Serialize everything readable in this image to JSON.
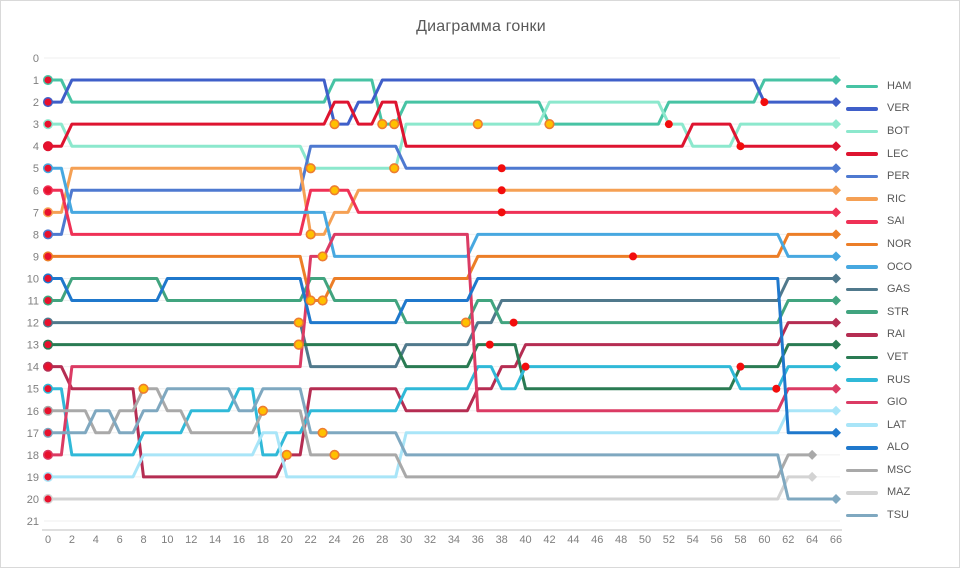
{
  "title": "Диаграмма гонки",
  "chart_data": {
    "type": "line",
    "subtype": "race-position-bump-chart",
    "title": "Диаграмма гонки",
    "xlabel": "",
    "ylabel": "",
    "x_axis": {
      "min": 0,
      "max": 66,
      "tick_step": 2,
      "ticks": [
        0,
        2,
        4,
        6,
        8,
        10,
        12,
        14,
        16,
        18,
        20,
        22,
        24,
        26,
        28,
        30,
        32,
        34,
        36,
        38,
        40,
        42,
        44,
        46,
        48,
        50,
        52,
        54,
        56,
        58,
        60,
        62,
        64,
        66
      ]
    },
    "y_axis": {
      "min": 0,
      "max": 21,
      "tick_step": 1,
      "ticks": [
        0,
        1,
        2,
        3,
        4,
        5,
        6,
        7,
        8,
        9,
        10,
        11,
        12,
        13,
        14,
        15,
        16,
        17,
        18,
        19,
        20,
        21
      ]
    },
    "grid": "horizontal-light",
    "legend_position": "right",
    "axis_text_color": "#7f7f7f",
    "title_color": "#595959",
    "gridline_color": "#efefef",
    "axis_line_color": "#bfbfbf",
    "marker_colors": {
      "start_dot": "#e8112d",
      "pit_dot_fill": "#ffc000",
      "pit_dot_stroke": "#ed7d31",
      "battle_dot": "#f20d0d"
    },
    "x": [
      0,
      2,
      4,
      6,
      8,
      10,
      12,
      14,
      16,
      18,
      20,
      22,
      24,
      26,
      28,
      30,
      32,
      34,
      36,
      38,
      40,
      42,
      44,
      46,
      48,
      50,
      52,
      54,
      56,
      58,
      60,
      62,
      64,
      66
    ],
    "series": [
      {
        "name": "HAM",
        "color": "#47c3a4",
        "positions": [
          1,
          2,
          2,
          2,
          2,
          2,
          2,
          2,
          2,
          2,
          2,
          2,
          1,
          1,
          3,
          2,
          2,
          2,
          2,
          2,
          2,
          3,
          3,
          3,
          3,
          3,
          2,
          2,
          2,
          2,
          1,
          1,
          1,
          1
        ],
        "pit_stops": [
          {
            "lap": 28,
            "pos": 3
          },
          {
            "lap": 42,
            "pos": 3
          }
        ],
        "battles": []
      },
      {
        "name": "VER",
        "color": "#3f5fc9",
        "positions": [
          2,
          1,
          1,
          1,
          1,
          1,
          1,
          1,
          1,
          1,
          1,
          1,
          3,
          2,
          1,
          1,
          1,
          1,
          1,
          1,
          1,
          1,
          1,
          1,
          1,
          1,
          1,
          1,
          1,
          1,
          2,
          2,
          2,
          2
        ],
        "pit_stops": [
          {
            "lap": 24,
            "pos": 3
          }
        ],
        "battles": [
          {
            "lap": 60,
            "pos": 2
          }
        ]
      },
      {
        "name": "BOT",
        "color": "#8ce8cd",
        "positions": [
          3,
          4,
          4,
          4,
          4,
          4,
          4,
          4,
          4,
          4,
          4,
          5,
          5,
          5,
          5,
          3,
          3,
          3,
          3,
          3,
          3,
          2,
          2,
          2,
          2,
          2,
          3,
          4,
          4,
          3,
          3,
          3,
          3,
          3
        ],
        "pit_stops": [
          {
            "lap": 22,
            "pos": 5
          },
          {
            "lap": 36,
            "pos": 3
          }
        ],
        "battles": []
      },
      {
        "name": "LEC",
        "color": "#de1430",
        "positions": [
          4,
          3,
          3,
          3,
          3,
          3,
          3,
          3,
          3,
          3,
          3,
          3,
          2,
          3,
          2,
          4,
          4,
          4,
          4,
          4,
          4,
          4,
          4,
          4,
          4,
          4,
          4,
          3,
          3,
          4,
          4,
          4,
          4,
          4
        ],
        "pit_stops": [
          {
            "lap": 29,
            "pos": 3
          }
        ],
        "battles": [
          {
            "lap": 52,
            "pos": 3
          },
          {
            "lap": 58,
            "pos": 4
          }
        ]
      },
      {
        "name": "PER",
        "color": "#4e79d0",
        "positions": [
          8,
          6,
          6,
          6,
          6,
          6,
          6,
          6,
          6,
          6,
          6,
          4,
          4,
          4,
          4,
          5,
          5,
          5,
          5,
          5,
          5,
          5,
          5,
          5,
          5,
          5,
          5,
          5,
          5,
          5,
          5,
          5,
          5,
          5
        ],
        "pit_stops": [
          {
            "lap": 29,
            "pos": 5
          }
        ],
        "battles": [
          {
            "lap": 38,
            "pos": 5
          }
        ]
      },
      {
        "name": "RIC",
        "color": "#f5a054",
        "positions": [
          7,
          5,
          5,
          5,
          5,
          5,
          5,
          5,
          5,
          5,
          5,
          8,
          7,
          6,
          6,
          6,
          6,
          6,
          6,
          6,
          6,
          6,
          6,
          6,
          6,
          6,
          6,
          6,
          6,
          6,
          6,
          6,
          6,
          6
        ],
        "pit_stops": [
          {
            "lap": 22,
            "pos": 8
          }
        ],
        "battles": [
          {
            "lap": 38,
            "pos": 6
          }
        ]
      },
      {
        "name": "SAI",
        "color": "#ef3156",
        "positions": [
          6,
          8,
          8,
          8,
          8,
          8,
          8,
          8,
          8,
          8,
          8,
          6,
          6,
          7,
          7,
          7,
          7,
          7,
          7,
          7,
          7,
          7,
          7,
          7,
          7,
          7,
          7,
          7,
          7,
          7,
          7,
          7,
          7,
          7
        ],
        "pit_stops": [
          {
            "lap": 24,
            "pos": 6
          }
        ],
        "battles": [
          {
            "lap": 38,
            "pos": 7
          }
        ]
      },
      {
        "name": "NOR",
        "color": "#ec7e27",
        "positions": [
          9,
          9,
          9,
          9,
          9,
          9,
          9,
          9,
          9,
          9,
          9,
          11,
          10,
          10,
          10,
          10,
          10,
          10,
          9,
          9,
          9,
          9,
          9,
          9,
          9,
          9,
          9,
          9,
          9,
          9,
          9,
          8,
          8,
          8
        ],
        "pit_stops": [
          {
            "lap": 22,
            "pos": 11
          }
        ],
        "battles": [
          {
            "lap": 49,
            "pos": 9
          }
        ]
      },
      {
        "name": "OCO",
        "color": "#47a8e0",
        "positions": [
          5,
          7,
          7,
          7,
          7,
          7,
          7,
          7,
          7,
          7,
          7,
          7,
          9,
          9,
          9,
          9,
          9,
          9,
          8,
          8,
          8,
          8,
          8,
          8,
          8,
          8,
          8,
          8,
          8,
          8,
          8,
          9,
          9,
          9
        ],
        "pit_stops": [
          {
            "lap": 23,
            "pos": 9
          }
        ],
        "battles": []
      },
      {
        "name": "GAS",
        "color": "#50798c",
        "positions": [
          12,
          12,
          12,
          12,
          12,
          12,
          12,
          12,
          12,
          12,
          12,
          14,
          14,
          14,
          14,
          13,
          13,
          13,
          12,
          11,
          11,
          11,
          11,
          11,
          11,
          11,
          11,
          11,
          11,
          11,
          11,
          10,
          10,
          10
        ],
        "pit_stops": [
          {
            "lap": 21,
            "pos": 13
          }
        ],
        "battles": []
      },
      {
        "name": "STR",
        "color": "#41a47f",
        "positions": [
          11,
          10,
          10,
          10,
          10,
          11,
          11,
          11,
          11,
          11,
          11,
          10,
          11,
          11,
          11,
          12,
          12,
          12,
          11,
          12,
          12,
          12,
          12,
          12,
          12,
          12,
          12,
          12,
          12,
          12,
          12,
          11,
          11,
          11
        ],
        "pit_stops": [
          {
            "lap": 23,
            "pos": 11
          }
        ],
        "battles": [
          {
            "lap": 39,
            "pos": 12
          }
        ]
      },
      {
        "name": "RAI",
        "color": "#b52d52",
        "positions": [
          14,
          15,
          15,
          15,
          19,
          19,
          19,
          19,
          19,
          19,
          18,
          15,
          15,
          15,
          15,
          16,
          16,
          16,
          15,
          14,
          13,
          13,
          13,
          13,
          13,
          13,
          13,
          13,
          13,
          13,
          13,
          12,
          12,
          12
        ],
        "pit_stops": [
          {
            "lap": 8,
            "pos": 15
          }
        ],
        "battles": [
          {
            "lap": 37,
            "pos": 13
          }
        ]
      },
      {
        "name": "VET",
        "color": "#2a7b53",
        "positions": [
          13,
          13,
          13,
          13,
          13,
          13,
          13,
          13,
          13,
          13,
          13,
          13,
          13,
          13,
          13,
          14,
          14,
          14,
          13,
          13,
          15,
          15,
          15,
          15,
          15,
          15,
          15,
          15,
          15,
          14,
          14,
          13,
          13,
          13
        ],
        "pit_stops": [
          {
            "lap": 21,
            "pos": 13
          }
        ],
        "battles": [
          {
            "lap": 58,
            "pos": 14
          }
        ]
      },
      {
        "name": "RUS",
        "color": "#30b9d8",
        "positions": [
          15,
          18,
          18,
          18,
          17,
          17,
          16,
          16,
          15,
          18,
          17,
          16,
          16,
          16,
          16,
          15,
          15,
          15,
          14,
          15,
          14,
          14,
          14,
          14,
          14,
          14,
          14,
          14,
          14,
          15,
          15,
          14,
          14,
          14
        ],
        "pit_stops": [
          {
            "lap": 18,
            "pos": 16
          }
        ],
        "battles": [
          {
            "lap": 40,
            "pos": 14
          }
        ]
      },
      {
        "name": "GIO",
        "color": "#db3b64",
        "positions": [
          18,
          14,
          14,
          14,
          14,
          14,
          14,
          14,
          14,
          14,
          14,
          9,
          8,
          8,
          8,
          8,
          8,
          8,
          16,
          16,
          16,
          16,
          16,
          16,
          16,
          16,
          16,
          16,
          16,
          16,
          16,
          15,
          15,
          15
        ],
        "pit_stops": [
          {
            "lap": 35,
            "pos": 12
          }
        ],
        "battles": [
          {
            "lap": 61,
            "pos": 15
          }
        ]
      },
      {
        "name": "LAT",
        "color": "#a9e5f8",
        "positions": [
          19,
          19,
          19,
          19,
          18,
          18,
          18,
          18,
          18,
          17,
          19,
          19,
          19,
          19,
          19,
          17,
          17,
          17,
          17,
          17,
          17,
          17,
          17,
          17,
          17,
          17,
          17,
          17,
          17,
          17,
          17,
          16,
          16,
          16
        ],
        "pit_stops": [
          {
            "lap": 20,
            "pos": 18
          }
        ],
        "battles": []
      },
      {
        "name": "ALO",
        "color": "#1f78cc",
        "positions": [
          10,
          11,
          11,
          11,
          11,
          10,
          10,
          10,
          10,
          10,
          10,
          12,
          12,
          12,
          12,
          11,
          11,
          11,
          10,
          10,
          10,
          10,
          10,
          10,
          10,
          10,
          10,
          10,
          10,
          10,
          10,
          17,
          17,
          17
        ],
        "pit_stops": [
          {
            "lap": 21,
            "pos": 12
          }
        ],
        "battles": []
      },
      {
        "name": "MSC",
        "color": "#a9a9a9",
        "positions": [
          16,
          16,
          17,
          16,
          15,
          16,
          17,
          17,
          17,
          16,
          16,
          18,
          18,
          18,
          18,
          19,
          19,
          19,
          19,
          19,
          19,
          19,
          19,
          19,
          19,
          19,
          19,
          19,
          19,
          19,
          19,
          18,
          18,
          null
        ],
        "pit_stops": [
          {
            "lap": 24,
            "pos": 18
          }
        ],
        "battles": []
      },
      {
        "name": "MAZ",
        "color": "#d3d3d3",
        "positions": [
          20,
          20,
          20,
          20,
          20,
          20,
          20,
          20,
          20,
          20,
          20,
          20,
          20,
          20,
          20,
          20,
          20,
          20,
          20,
          20,
          20,
          20,
          20,
          20,
          20,
          20,
          20,
          20,
          20,
          20,
          20,
          19,
          19,
          null
        ],
        "pit_stops": [],
        "battles": []
      },
      {
        "name": "TSU",
        "color": "#7fa8c0",
        "positions": [
          17,
          17,
          16,
          17,
          16,
          15,
          15,
          15,
          16,
          15,
          15,
          17,
          17,
          17,
          17,
          18,
          18,
          18,
          18,
          18,
          18,
          18,
          18,
          18,
          18,
          18,
          18,
          18,
          18,
          18,
          18,
          20,
          20,
          20
        ],
        "pit_stops": [
          {
            "lap": 23,
            "pos": 17
          }
        ],
        "battles": []
      }
    ]
  }
}
